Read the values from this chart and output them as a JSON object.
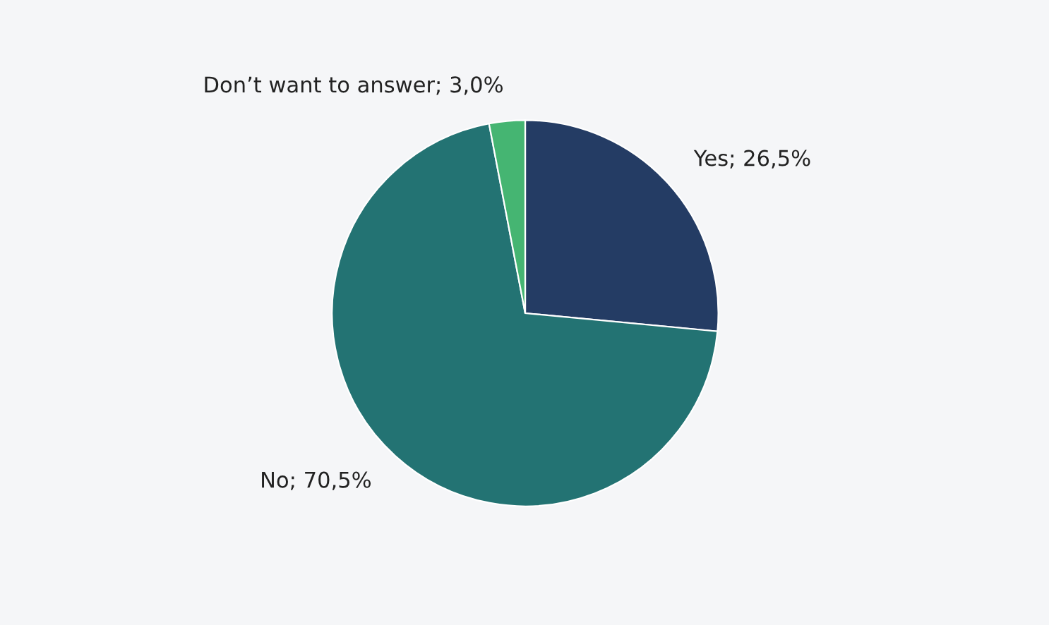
{
  "chart_data": {
    "type": "pie",
    "categories": [
      "Yes",
      "No",
      "Don’t want to answer"
    ],
    "values": [
      26.5,
      70.5,
      3.0
    ],
    "value_labels": [
      "26,5%",
      "70,5%",
      "3,0%"
    ],
    "colors": [
      "#243c64",
      "#237373",
      "#45b572"
    ],
    "legend": false
  }
}
